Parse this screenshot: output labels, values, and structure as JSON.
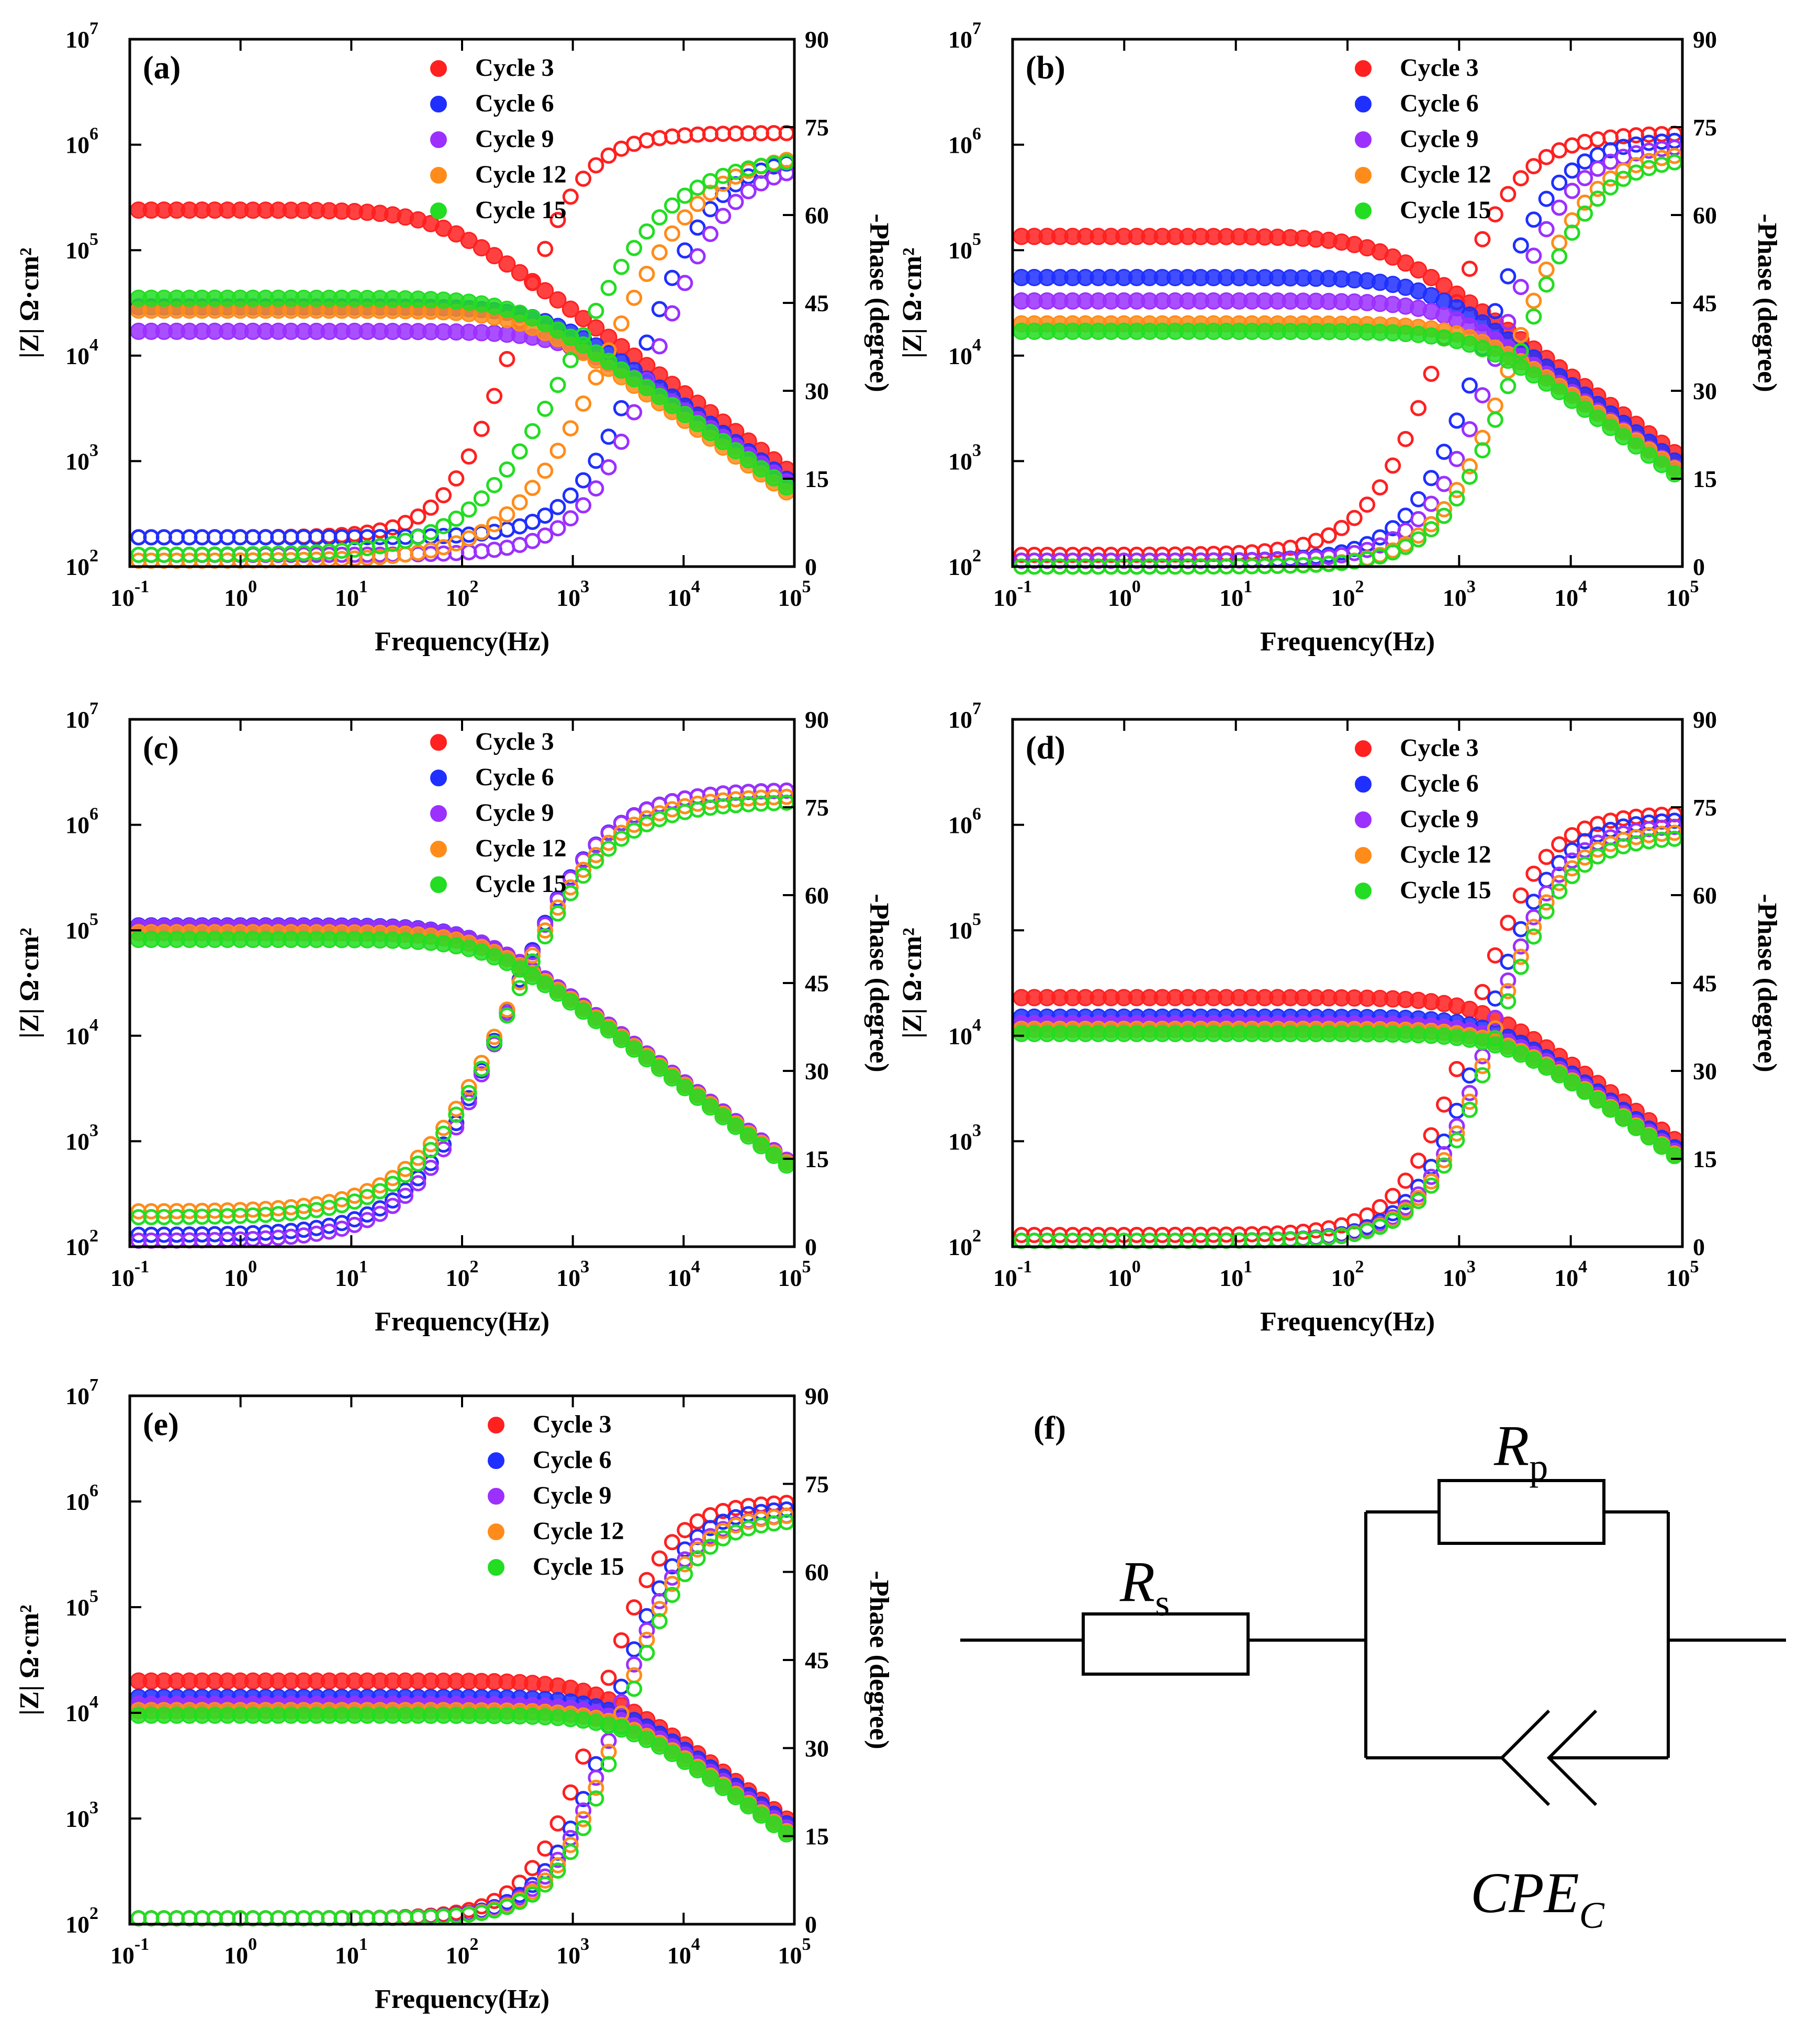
{
  "chart_data": [
    {
      "panel": "(a)",
      "type": "scatter",
      "xlabel": "Frequency(Hz)",
      "ylabel": "|Z| Ω·cm²",
      "y2label": "-Phase (degree)",
      "xscale": "log",
      "xlim": [
        0.1,
        100000
      ],
      "yscale": "log",
      "ylim": [
        100,
        10000000
      ],
      "y2lim": [
        0,
        90
      ],
      "xticks": [
        "10-1",
        "100",
        "101",
        "102",
        "103",
        "104",
        "105"
      ],
      "yticks": [
        "102",
        "103",
        "104",
        "105",
        "106",
        "107"
      ],
      "y2ticks": [
        "0",
        "15",
        "30",
        "45",
        "60",
        "75",
        "90"
      ],
      "series": [
        {
          "name": "Cycle 3",
          "color": "#ff2020",
          "modulus": {
            "r0": 240000,
            "fc": 60,
            "n": 0.78
          },
          "phase": {
            "low": 5,
            "high": 74,
            "mid": 300,
            "slope": 1.45
          }
        },
        {
          "name": "Cycle 6",
          "color": "#1f2fff",
          "modulus": {
            "r0": 29000,
            "fc": 600,
            "n": 0.76
          },
          "phase": {
            "low": 5,
            "high": 70,
            "mid": 4500,
            "slope": 1.35
          }
        },
        {
          "name": "Cycle 9",
          "color": "#9b30ff",
          "modulus": {
            "r0": 17000,
            "fc": 1000,
            "n": 0.74
          },
          "phase": {
            "low": 2,
            "high": 69,
            "mid": 5500,
            "slope": 1.3
          }
        },
        {
          "name": "Cycle 12",
          "color": "#ff8c1a",
          "modulus": {
            "r0": 27000,
            "fc": 400,
            "n": 0.74
          },
          "phase": {
            "low": 1,
            "high": 71,
            "mid": 2000,
            "slope": 1.0
          }
        },
        {
          "name": "Cycle 15",
          "color": "#22dd22",
          "modulus": {
            "r0": 35000,
            "fc": 350,
            "n": 0.75
          },
          "phase": {
            "low": 2,
            "high": 70,
            "mid": 1000,
            "slope": 0.95
          }
        }
      ]
    },
    {
      "panel": "(b)",
      "type": "scatter",
      "xlabel": "Frequency(Hz)",
      "ylabel": "|Z| Ω·cm²",
      "y2label": "-Phase (degree)",
      "xscale": "log",
      "xlim": [
        0.1,
        100000
      ],
      "yscale": "log",
      "ylim": [
        100,
        10000000
      ],
      "y2lim": [
        0,
        90
      ],
      "xticks": [
        "10-1",
        "100",
        "101",
        "102",
        "103",
        "104",
        "105"
      ],
      "yticks": [
        "102",
        "103",
        "104",
        "105",
        "106",
        "107"
      ],
      "y2ticks": [
        "0",
        "15",
        "30",
        "45",
        "60",
        "75",
        "90"
      ],
      "series": [
        {
          "name": "Cycle 3",
          "color": "#ff2020",
          "modulus": {
            "r0": 135000,
            "fc": 200,
            "n": 0.78
          },
          "phase": {
            "low": 2,
            "high": 74,
            "mid": 700,
            "slope": 1.3
          }
        },
        {
          "name": "Cycle 6",
          "color": "#1f2fff",
          "modulus": {
            "r0": 55000,
            "fc": 500,
            "n": 0.78
          },
          "phase": {
            "low": 1,
            "high": 73,
            "mid": 1600,
            "slope": 1.35
          }
        },
        {
          "name": "Cycle 9",
          "color": "#9b30ff",
          "modulus": {
            "r0": 33000,
            "fc": 800,
            "n": 0.78
          },
          "phase": {
            "low": 1,
            "high": 72,
            "mid": 2200,
            "slope": 1.35
          }
        },
        {
          "name": "Cycle 12",
          "color": "#ff8c1a",
          "modulus": {
            "r0": 20000,
            "fc": 1400,
            "n": 0.77
          },
          "phase": {
            "low": 0,
            "high": 71,
            "mid": 3000,
            "slope": 1.3
          }
        },
        {
          "name": "Cycle 15",
          "color": "#22dd22",
          "modulus": {
            "r0": 17000,
            "fc": 1500,
            "n": 0.77
          },
          "phase": {
            "low": 0,
            "high": 70,
            "mid": 3300,
            "slope": 1.3
          }
        }
      ]
    },
    {
      "panel": "(c)",
      "type": "scatter",
      "xlabel": "Frequency(Hz)",
      "ylabel": "|Z| Ω·cm²",
      "y2label": "-Phase (degree)",
      "xscale": "log",
      "xlim": [
        0.1,
        100000
      ],
      "yscale": "log",
      "ylim": [
        100,
        10000000
      ],
      "y2lim": [
        0,
        90
      ],
      "xticks": [
        "10-1",
        "100",
        "101",
        "102",
        "103",
        "104",
        "105"
      ],
      "yticks": [
        "102",
        "103",
        "104",
        "105",
        "106",
        "107"
      ],
      "y2ticks": [
        "0",
        "15",
        "30",
        "45",
        "60",
        "75",
        "90"
      ],
      "series": [
        {
          "name": "Cycle 3",
          "color": "#ff2020",
          "modulus": {
            "r0": 110000,
            "fc": 140,
            "n": 0.8
          },
          "phase": {
            "low": 2,
            "high": 78,
            "mid": 250,
            "slope": 1.05
          }
        },
        {
          "name": "Cycle 6",
          "color": "#1f2fff",
          "modulus": {
            "r0": 110000,
            "fc": 140,
            "n": 0.8
          },
          "phase": {
            "low": 2,
            "high": 78,
            "mid": 250,
            "slope": 1.05
          }
        },
        {
          "name": "Cycle 9",
          "color": "#9b30ff",
          "modulus": {
            "r0": 108000,
            "fc": 145,
            "n": 0.8
          },
          "phase": {
            "low": 1,
            "high": 78,
            "mid": 250,
            "slope": 1.05
          }
        },
        {
          "name": "Cycle 12",
          "color": "#ff8c1a",
          "modulus": {
            "r0": 95000,
            "fc": 160,
            "n": 0.8
          },
          "phase": {
            "low": 6,
            "high": 77,
            "mid": 270,
            "slope": 1.0
          }
        },
        {
          "name": "Cycle 15",
          "color": "#22dd22",
          "modulus": {
            "r0": 82000,
            "fc": 180,
            "n": 0.8
          },
          "phase": {
            "low": 5,
            "high": 76,
            "mid": 270,
            "slope": 1.0
          }
        }
      ]
    },
    {
      "panel": "(d)",
      "type": "scatter",
      "xlabel": "Frequency(Hz)",
      "ylabel": "|Z| Ω·cm²",
      "y2label": "-Phase (degree)",
      "xscale": "log",
      "xlim": [
        0.1,
        100000
      ],
      "yscale": "log",
      "ylim": [
        100,
        10000000
      ],
      "y2lim": [
        0,
        90
      ],
      "xticks": [
        "10-1",
        "100",
        "101",
        "102",
        "103",
        "104",
        "105"
      ],
      "yticks": [
        "102",
        "103",
        "104",
        "105",
        "106",
        "107"
      ],
      "y2ticks": [
        "0",
        "15",
        "30",
        "45",
        "60",
        "75",
        "90"
      ],
      "series": [
        {
          "name": "Cycle 3",
          "color": "#ff2020",
          "modulus": {
            "r0": 23000,
            "fc": 1600,
            "n": 0.78
          },
          "phase": {
            "low": 2,
            "high": 74,
            "mid": 1300,
            "slope": 1.4
          }
        },
        {
          "name": "Cycle 6",
          "color": "#1f2fff",
          "modulus": {
            "r0": 15000,
            "fc": 2200,
            "n": 0.78
          },
          "phase": {
            "low": 1,
            "high": 73,
            "mid": 1700,
            "slope": 1.4
          }
        },
        {
          "name": "Cycle 9",
          "color": "#9b30ff",
          "modulus": {
            "r0": 13000,
            "fc": 2400,
            "n": 0.78
          },
          "phase": {
            "low": 1,
            "high": 72,
            "mid": 1900,
            "slope": 1.4
          }
        },
        {
          "name": "Cycle 12",
          "color": "#ff8c1a",
          "modulus": {
            "r0": 11500,
            "fc": 2600,
            "n": 0.78
          },
          "phase": {
            "low": 1,
            "high": 71,
            "mid": 2000,
            "slope": 1.4
          }
        },
        {
          "name": "Cycle 15",
          "color": "#22dd22",
          "modulus": {
            "r0": 10500,
            "fc": 2800,
            "n": 0.78
          },
          "phase": {
            "low": 1,
            "high": 70,
            "mid": 2100,
            "slope": 1.4
          }
        }
      ]
    },
    {
      "panel": "(e)",
      "type": "scatter",
      "xlabel": "Frequency(Hz)",
      "ylabel": "|Z| Ω·cm²",
      "y2label": "-Phase (degree)",
      "xscale": "log",
      "xlim": [
        0.1,
        100000
      ],
      "yscale": "log",
      "ylim": [
        100,
        10000000
      ],
      "y2lim": [
        0,
        90
      ],
      "xticks": [
        "10-1",
        "100",
        "101",
        "102",
        "103",
        "104",
        "105"
      ],
      "yticks": [
        "102",
        "103",
        "104",
        "105",
        "106",
        "107"
      ],
      "y2ticks": [
        "0",
        "15",
        "30",
        "45",
        "60",
        "75",
        "90"
      ],
      "series": [
        {
          "name": "Cycle 3",
          "color": "#ff2020",
          "modulus": {
            "r0": 20000,
            "fc": 1800,
            "n": 0.78
          },
          "phase": {
            "low": 1,
            "high": 72,
            "mid": 1700,
            "slope": 1.45
          }
        },
        {
          "name": "Cycle 6",
          "color": "#1f2fff",
          "modulus": {
            "r0": 14000,
            "fc": 2500,
            "n": 0.78
          },
          "phase": {
            "low": 1,
            "high": 71,
            "mid": 2300,
            "slope": 1.45
          }
        },
        {
          "name": "Cycle 9",
          "color": "#9b30ff",
          "modulus": {
            "r0": 12000,
            "fc": 2700,
            "n": 0.78
          },
          "phase": {
            "low": 1,
            "high": 70,
            "mid": 2500,
            "slope": 1.45
          }
        },
        {
          "name": "Cycle 12",
          "color": "#ff8c1a",
          "modulus": {
            "r0": 10500,
            "fc": 2900,
            "n": 0.78
          },
          "phase": {
            "low": 1,
            "high": 70,
            "mid": 2700,
            "slope": 1.45
          }
        },
        {
          "name": "Cycle 15",
          "color": "#22dd22",
          "modulus": {
            "r0": 9500,
            "fc": 3100,
            "n": 0.78
          },
          "phase": {
            "low": 1,
            "high": 69,
            "mid": 2900,
            "slope": 1.45
          }
        }
      ]
    }
  ],
  "circuit": {
    "panel_label": "(f)",
    "rs_main": "R",
    "rs_sub": "s",
    "rp_main": "R",
    "rp_sub": "p",
    "cpe_main": "CPE",
    "cpe_sub": "C"
  }
}
